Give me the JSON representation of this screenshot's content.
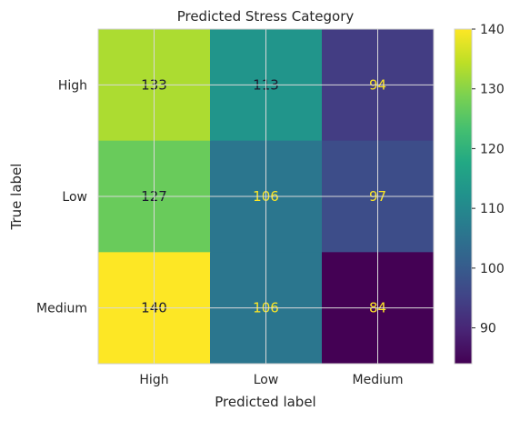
{
  "chart_data": {
    "type": "heatmap",
    "title": "Predicted Stress Category",
    "xlabel": "Predicted label",
    "ylabel": "True label",
    "x_categories": [
      "High",
      "Low",
      "Medium"
    ],
    "y_categories": [
      "High",
      "Low",
      "Medium"
    ],
    "values": [
      [
        133,
        113,
        94
      ],
      [
        127,
        106,
        97
      ],
      [
        140,
        106,
        84
      ]
    ],
    "colormap": "viridis",
    "grid": true,
    "colorbar": {
      "range": [
        84,
        140
      ],
      "ticks": [
        90,
        100,
        110,
        120,
        130,
        140
      ],
      "position": "right"
    },
    "text_colors": {
      "dark": "#1b1b2f",
      "light": "#fde725"
    }
  }
}
